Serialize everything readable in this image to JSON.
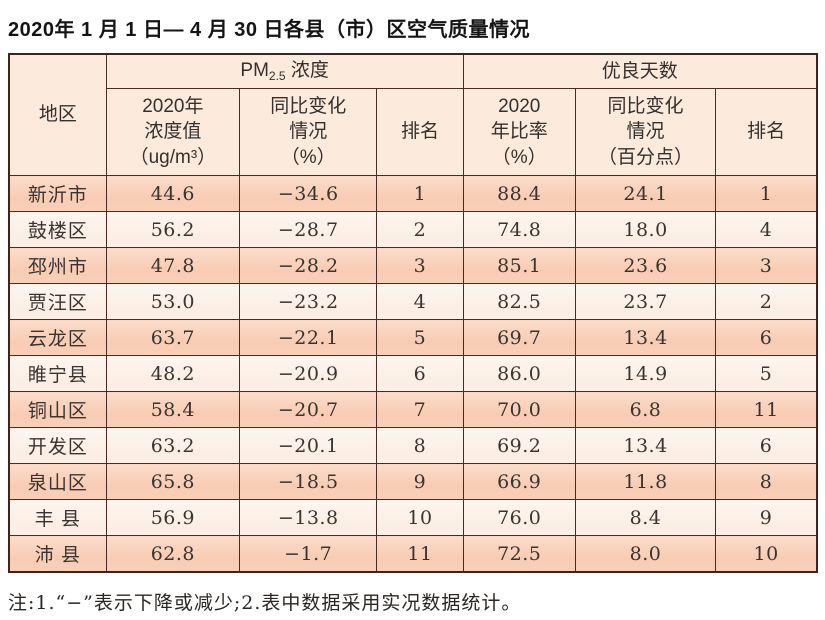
{
  "page": {
    "title": "2020年 1 月 1 日— 4 月 30 日各县（市）区空气质量情况",
    "note": "注:1.“−”表示下降或减少;2.表中数据采用实况数据统计。"
  },
  "colors": {
    "header_bg": "#fceadd",
    "row_odd_bg": "#f8ccb4",
    "row_even_bg": "#fbeee4",
    "border": "#40241c",
    "text": "#3a3430"
  },
  "table": {
    "group_headers": {
      "region": "地区",
      "pm_prefix": "PM",
      "pm_sub": "2.5",
      "pm_suffix": " 浓度",
      "good_days": "优良天数"
    },
    "sub_headers": {
      "pm_value": "2020年\n浓度值\n（ug/m³）",
      "pm_change": "同比变化\n情况\n（%）",
      "pm_rank": "排名",
      "good_ratio": "2020\n年比率\n（%）",
      "good_change": "同比变化\n情况\n（百分点）",
      "good_rank": "排名"
    },
    "rows": [
      {
        "region": "新沂市",
        "pm_value": "44.6",
        "pm_change": "−34.6",
        "pm_rank": "1",
        "good_ratio": "88.4",
        "good_change": "24.1",
        "good_rank": "1"
      },
      {
        "region": "鼓楼区",
        "pm_value": "56.2",
        "pm_change": "−28.7",
        "pm_rank": "2",
        "good_ratio": "74.8",
        "good_change": "18.0",
        "good_rank": "4"
      },
      {
        "region": "邳州市",
        "pm_value": "47.8",
        "pm_change": "−28.2",
        "pm_rank": "3",
        "good_ratio": "85.1",
        "good_change": "23.6",
        "good_rank": "3"
      },
      {
        "region": "贾汪区",
        "pm_value": "53.0",
        "pm_change": "−23.2",
        "pm_rank": "4",
        "good_ratio": "82.5",
        "good_change": "23.7",
        "good_rank": "2"
      },
      {
        "region": "云龙区",
        "pm_value": "63.7",
        "pm_change": "−22.1",
        "pm_rank": "5",
        "good_ratio": "69.7",
        "good_change": "13.4",
        "good_rank": "6"
      },
      {
        "region": "睢宁县",
        "pm_value": "48.2",
        "pm_change": "−20.9",
        "pm_rank": "6",
        "good_ratio": "86.0",
        "good_change": "14.9",
        "good_rank": "5"
      },
      {
        "region": "铜山区",
        "pm_value": "58.4",
        "pm_change": "−20.7",
        "pm_rank": "7",
        "good_ratio": "70.0",
        "good_change": "6.8",
        "good_rank": "11"
      },
      {
        "region": "开发区",
        "pm_value": "63.2",
        "pm_change": "−20.1",
        "pm_rank": "8",
        "good_ratio": "69.2",
        "good_change": "13.4",
        "good_rank": "6"
      },
      {
        "region": "泉山区",
        "pm_value": "65.8",
        "pm_change": "−18.5",
        "pm_rank": "9",
        "good_ratio": "66.9",
        "good_change": "11.8",
        "good_rank": "8"
      },
      {
        "region": "丰 县",
        "pm_value": "56.9",
        "pm_change": "−13.8",
        "pm_rank": "10",
        "good_ratio": "76.0",
        "good_change": "8.4",
        "good_rank": "9"
      },
      {
        "region": "沛 县",
        "pm_value": "62.8",
        "pm_change": "−1.7",
        "pm_rank": "11",
        "good_ratio": "72.5",
        "good_change": "8.0",
        "good_rank": "10"
      }
    ]
  },
  "chart_data": {
    "type": "table",
    "title": "2020年1月1日—4月30日各县（市）区空气质量情况",
    "column_groups": [
      "地区",
      "PM2.5浓度",
      "优良天数"
    ],
    "columns": [
      "地区",
      "PM2.5浓度 2020年浓度值（ug/m³）",
      "PM2.5浓度 同比变化情况（%）",
      "PM2.5浓度 排名",
      "优良天数 2020年比率（%）",
      "优良天数 同比变化情况（百分点）",
      "优良天数 排名"
    ],
    "rows": [
      [
        "新沂市",
        44.6,
        -34.6,
        1,
        88.4,
        24.1,
        1
      ],
      [
        "鼓楼区",
        56.2,
        -28.7,
        2,
        74.8,
        18.0,
        4
      ],
      [
        "邳州市",
        47.8,
        -28.2,
        3,
        85.1,
        23.6,
        3
      ],
      [
        "贾汪区",
        53.0,
        -23.2,
        4,
        82.5,
        23.7,
        2
      ],
      [
        "云龙区",
        63.7,
        -22.1,
        5,
        69.7,
        13.4,
        6
      ],
      [
        "睢宁县",
        48.2,
        -20.9,
        6,
        86.0,
        14.9,
        5
      ],
      [
        "铜山区",
        58.4,
        -20.7,
        7,
        70.0,
        6.8,
        11
      ],
      [
        "开发区",
        63.2,
        -20.1,
        8,
        69.2,
        13.4,
        6
      ],
      [
        "泉山区",
        65.8,
        -18.5,
        9,
        66.9,
        11.8,
        8
      ],
      [
        "丰县",
        56.9,
        -13.8,
        10,
        76.0,
        8.4,
        9
      ],
      [
        "沛县",
        62.8,
        -1.7,
        11,
        72.5,
        8.0,
        10
      ]
    ],
    "note": "注:1.“−”表示下降或减少;2.表中数据采用实况数据统计。"
  }
}
